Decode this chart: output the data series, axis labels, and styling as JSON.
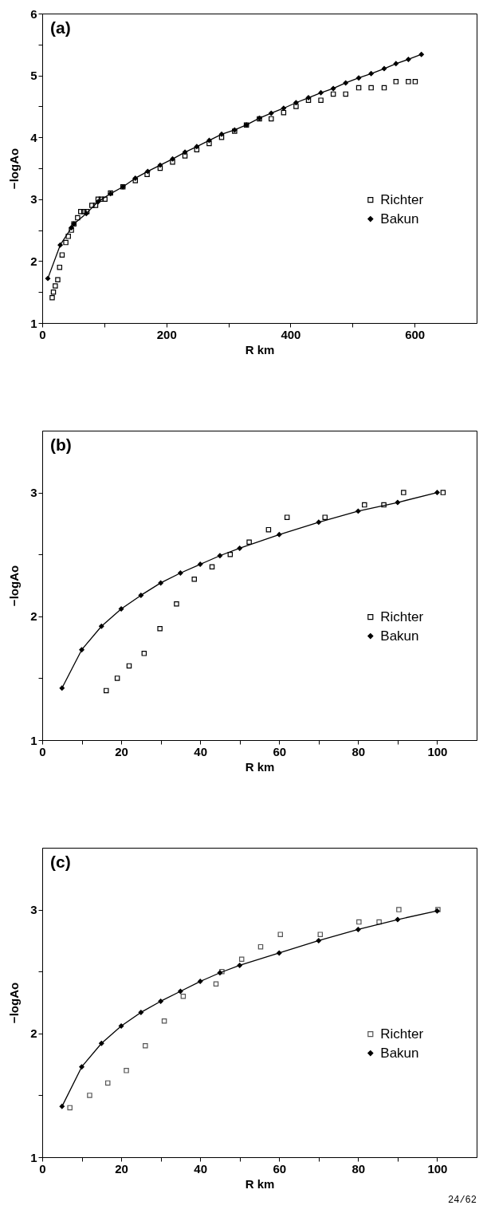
{
  "chart_data": [
    {
      "type": "line",
      "title": "(a)",
      "xlabel": "R km",
      "ylabel": "−logAo",
      "legend": "right",
      "grid": false,
      "xlim": [
        0,
        700
      ],
      "xticks": [
        0,
        {
          "value": 100,
          "label": null
        },
        200,
        {
          "value": 300,
          "label": null
        },
        400,
        {
          "value": 500,
          "label": null
        },
        600
      ],
      "ylim": [
        1,
        6
      ],
      "yticks": [
        1,
        {
          "value": 1.5,
          "label": null
        },
        2,
        {
          "value": 2.5,
          "label": null
        },
        3,
        {
          "value": 3.5,
          "label": null
        },
        4,
        {
          "value": 4.5,
          "label": null
        },
        5,
        {
          "value": 5.5,
          "label": null
        },
        6
      ],
      "series": [
        {
          "name": "Richter",
          "type": "scatter",
          "marker": "square",
          "color": "#000000",
          "x": [
            16,
            18,
            21,
            25,
            28,
            32,
            38,
            42,
            47,
            51,
            57,
            62,
            67,
            72,
            80,
            86,
            90,
            95,
            101,
            110,
            130,
            150,
            169,
            190,
            210,
            230,
            249,
            269,
            289,
            310,
            329,
            350,
            369,
            389,
            409,
            429,
            449,
            469,
            489,
            510,
            530,
            551,
            570,
            590,
            601
          ],
          "values": [
            1.41,
            1.5,
            1.6,
            1.7,
            1.9,
            2.1,
            2.3,
            2.4,
            2.5,
            2.6,
            2.7,
            2.8,
            2.8,
            2.8,
            2.9,
            2.9,
            3.0,
            3.0,
            3.0,
            3.1,
            3.2,
            3.3,
            3.4,
            3.5,
            3.6,
            3.7,
            3.8,
            3.9,
            4.0,
            4.1,
            4.2,
            4.3,
            4.3,
            4.4,
            4.5,
            4.6,
            4.6,
            4.7,
            4.7,
            4.8,
            4.8,
            4.8,
            4.9,
            4.9,
            4.9
          ]
        },
        {
          "name": "Bakun",
          "marker": "diamond",
          "color": "#000000",
          "x": [
            9,
            29,
            47,
            51,
            71,
            90,
            110,
            130,
            150,
            170,
            190,
            210,
            230,
            249,
            269,
            289,
            310,
            329,
            350,
            369,
            389,
            409,
            429,
            449,
            469,
            489,
            510,
            530,
            551,
            570,
            590,
            611
          ],
          "values": [
            1.72,
            2.26,
            2.54,
            2.6,
            2.77,
            2.96,
            3.09,
            3.2,
            3.34,
            3.45,
            3.55,
            3.65,
            3.76,
            3.85,
            3.95,
            4.05,
            4.12,
            4.2,
            4.31,
            4.39,
            4.47,
            4.56,
            4.64,
            4.72,
            4.79,
            4.88,
            4.96,
            5.03,
            5.11,
            5.19,
            5.26,
            5.34
          ]
        }
      ]
    },
    {
      "type": "line",
      "title": "(b)",
      "xlabel": "R km",
      "ylabel": "−logAo",
      "legend": "right",
      "grid": false,
      "xlim": [
        0,
        110
      ],
      "xticks": [
        0,
        {
          "value": 10,
          "label": null
        },
        20,
        {
          "value": 30,
          "label": null
        },
        40,
        {
          "value": 50,
          "label": null
        },
        60,
        {
          "value": 70,
          "label": null
        },
        80,
        {
          "value": 90,
          "label": null
        },
        100
      ],
      "ylim": [
        1,
        3.5
      ],
      "yticks": [
        1,
        {
          "value": 1.5,
          "label": null
        },
        2,
        {
          "value": 2.5,
          "label": null
        },
        3
      ],
      "series": [
        {
          "name": "Richter",
          "type": "scatter",
          "marker": "square",
          "color": "#000000",
          "x": [
            16.2,
            19,
            22,
            25.8,
            29.8,
            34,
            38.5,
            43,
            47.6,
            52.4,
            57.3,
            62,
            71.6,
            81.6,
            86.5,
            91.5,
            101.5
          ],
          "values": [
            1.4,
            1.5,
            1.6,
            1.7,
            1.9,
            2.1,
            2.3,
            2.4,
            2.5,
            2.6,
            2.7,
            2.8,
            2.8,
            2.9,
            2.9,
            3.0,
            3.0
          ]
        },
        {
          "name": "Bakun",
          "marker": "diamond",
          "color": "#000000",
          "x": [
            5,
            10,
            15,
            20,
            25,
            30,
            35,
            40,
            45,
            50,
            60,
            70,
            80,
            90,
            100
          ],
          "values": [
            1.42,
            1.73,
            1.92,
            2.06,
            2.17,
            2.27,
            2.35,
            2.42,
            2.49,
            2.55,
            2.66,
            2.76,
            2.85,
            2.92,
            3.0
          ]
        }
      ]
    },
    {
      "type": "line",
      "title": "(c)",
      "xlabel": "R km",
      "ylabel": "−logAo",
      "legend": "right",
      "grid": false,
      "annotations": [
        "24/62"
      ],
      "xlim": [
        0,
        110
      ],
      "xticks": [
        0,
        {
          "value": 10,
          "label": null
        },
        20,
        {
          "value": 30,
          "label": null
        },
        40,
        {
          "value": 50,
          "label": null
        },
        60,
        {
          "value": 70,
          "label": null
        },
        80,
        {
          "value": 90,
          "label": null
        },
        100
      ],
      "ylim": [
        1,
        3.5
      ],
      "yticks": [
        1,
        {
          "value": 1.5,
          "label": null
        },
        2,
        {
          "value": 2.5,
          "label": null
        },
        3
      ],
      "series": [
        {
          "name": "Richter",
          "type": "scatter",
          "marker": "square",
          "color": "#555555",
          "x": [
            7,
            12,
            16.6,
            21.3,
            26.1,
            30.9,
            35.7,
            44,
            45.5,
            50.5,
            55.3,
            60.3,
            70.4,
            80.2,
            85.3,
            90.3,
            100.2
          ],
          "values": [
            1.4,
            1.5,
            1.6,
            1.7,
            1.9,
            2.1,
            2.3,
            2.4,
            2.5,
            2.6,
            2.7,
            2.8,
            2.8,
            2.9,
            2.9,
            3.0,
            3.0
          ]
        },
        {
          "name": "Bakun",
          "marker": "diamond",
          "color": "#000000",
          "x": [
            5,
            10,
            15,
            20,
            25,
            30,
            35,
            40,
            45,
            50,
            60,
            70,
            80,
            90,
            100
          ],
          "values": [
            1.41,
            1.73,
            1.92,
            2.06,
            2.17,
            2.26,
            2.34,
            2.42,
            2.49,
            2.55,
            2.65,
            2.75,
            2.84,
            2.92,
            2.99
          ]
        }
      ]
    }
  ]
}
